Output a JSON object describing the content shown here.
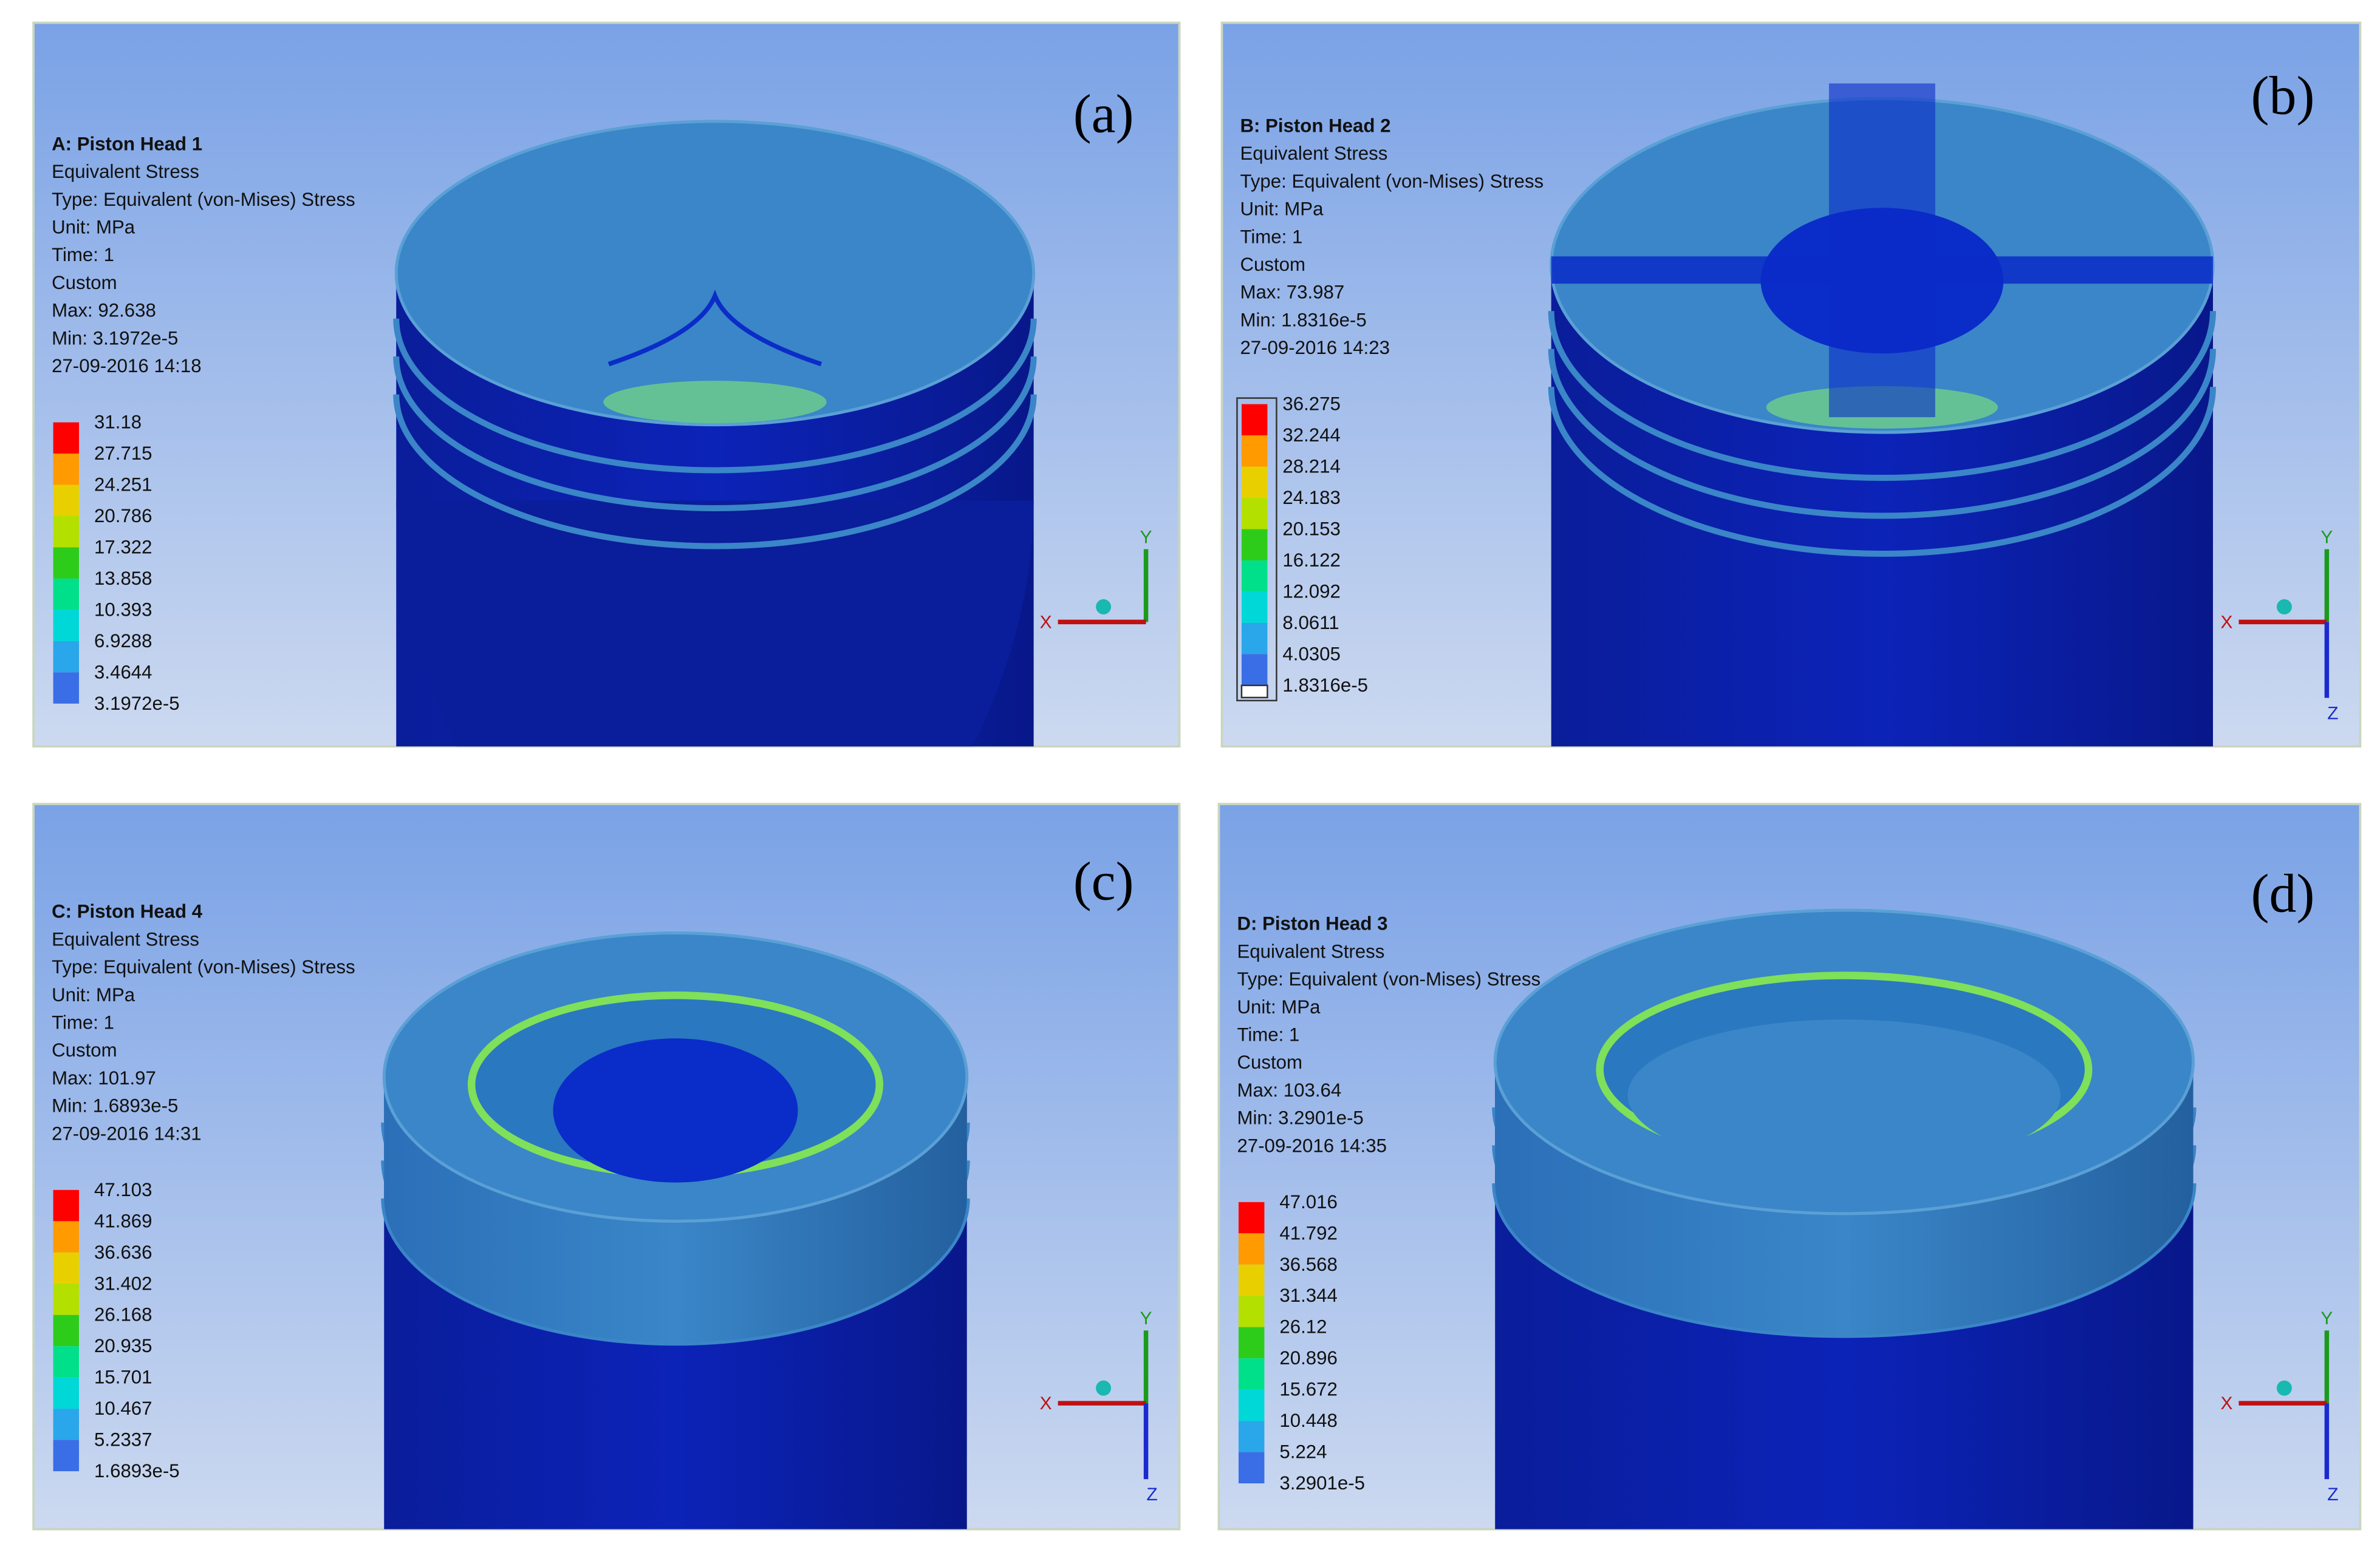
{
  "panels": [
    {
      "label": "(a)",
      "info": [
        "A: Piston Head 1",
        "Equivalent Stress",
        "Type: Equivalent (von-Mises) Stress",
        "Unit: MPa",
        "Time: 1",
        "Custom",
        "Max: 92.638",
        "Min: 3.1972e-5",
        "27-09-2016 14:18"
      ],
      "legend": [
        "31.18",
        "27.715",
        "24.251",
        "20.786",
        "17.322",
        "13.858",
        "10.393",
        "6.9288",
        "3.4644",
        "3.1972e-5"
      ],
      "axes": {
        "y": "Y",
        "x": "X"
      }
    },
    {
      "label": "(b)",
      "info": [
        "B: Piston Head 2",
        "Equivalent Stress",
        "Type: Equivalent (von-Mises) Stress",
        "Unit: MPa",
        "Time: 1",
        "Custom",
        "Max: 73.987",
        "Min: 1.8316e-5",
        "27-09-2016 14:23"
      ],
      "legend": [
        "36.275",
        "32.244",
        "28.214",
        "24.183",
        "20.153",
        "16.122",
        "12.092",
        "8.0611",
        "4.0305",
        "1.8316e-5"
      ],
      "axes": {
        "y": "Y",
        "x": "X",
        "z": "Z"
      }
    },
    {
      "label": "(c)",
      "info": [
        "C: Piston Head 4",
        "Equivalent Stress",
        "Type: Equivalent (von-Mises) Stress",
        "Unit: MPa",
        "Time: 1",
        "Custom",
        "Max: 101.97",
        "Min: 1.6893e-5",
        "27-09-2016 14:31"
      ],
      "legend": [
        "47.103",
        "41.869",
        "36.636",
        "31.402",
        "26.168",
        "20.935",
        "15.701",
        "10.467",
        "5.2337",
        "1.6893e-5"
      ],
      "axes": {
        "y": "Y",
        "x": "X",
        "z": "Z"
      }
    },
    {
      "label": "(d)",
      "info": [
        "D: Piston Head 3",
        "Equivalent Stress",
        "Type: Equivalent (von-Mises) Stress",
        "Unit: MPa",
        "Time: 1",
        "Custom",
        "Max: 103.64",
        "Min: 3.2901e-5",
        "27-09-2016 14:35"
      ],
      "legend": [
        "47.016",
        "41.792",
        "36.568",
        "31.344",
        "26.12",
        "20.896",
        "15.672",
        "10.448",
        "5.224",
        "3.2901e-5"
      ],
      "axes": {
        "y": "Y",
        "x": "X",
        "z": "Z"
      }
    }
  ]
}
